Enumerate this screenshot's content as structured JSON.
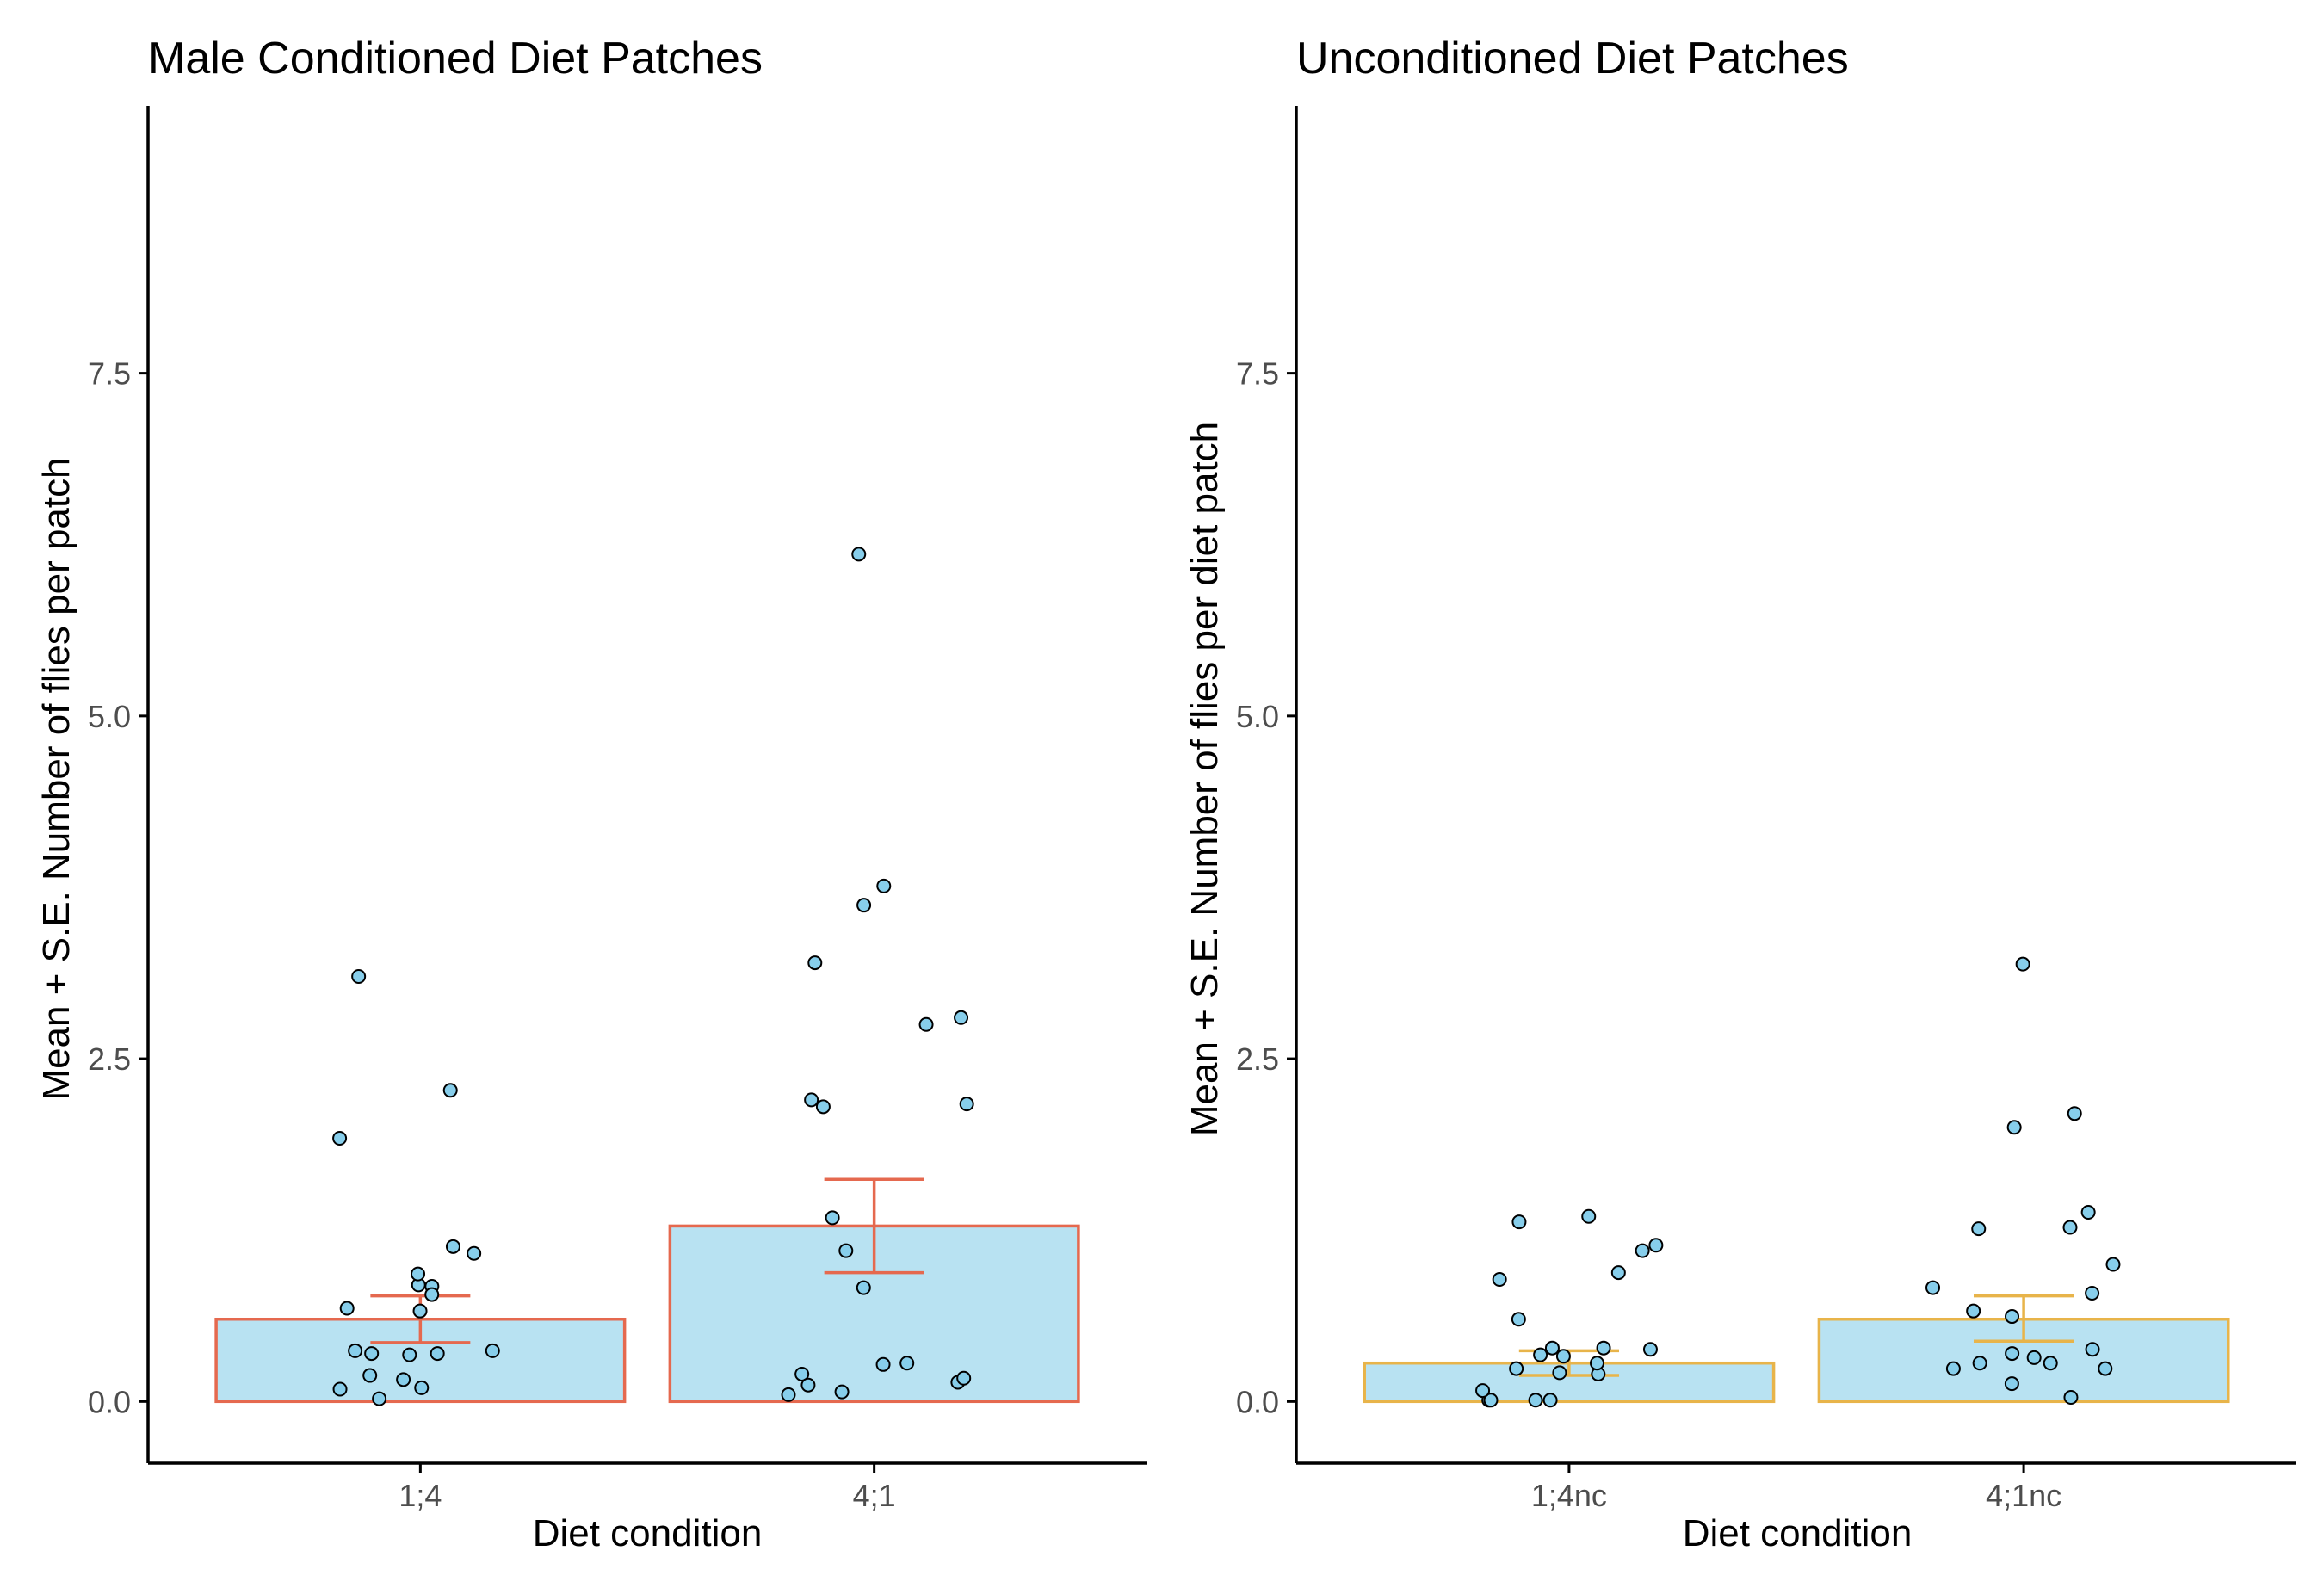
{
  "chart_data": [
    {
      "type": "bar",
      "title": "Male Conditioned Diet Patches",
      "xlabel": "Diet condition",
      "ylabel": "Mean + S.E. Number of flies per patch",
      "ylim": [
        -0.45,
        9.45
      ],
      "yticks": [
        "0.0",
        "2.5",
        "5.0",
        "7.5"
      ],
      "grid": false,
      "categories": [
        "1;4",
        "4;1"
      ],
      "values": [
        0.6,
        1.28
      ],
      "error_low": [
        0.43,
        0.94
      ],
      "error_high": [
        0.77,
        1.62
      ],
      "colors": {
        "bar_fill": "#b8e2f2",
        "bar_outline": "#e5694f",
        "error_bar": "#e5694f",
        "point_fill": "#87ceeb",
        "point_edge": "#000000"
      },
      "points": [
        {
          "category": 0,
          "values": [
            0.85,
            0.84,
            0.68,
            0.35,
            0.34,
            0.1,
            0.09,
            0.37,
            0.35,
            0.16,
            0.02,
            1.08,
            2.27,
            1.92,
            0.66,
            0.19,
            1.13,
            0.37,
            0.78,
            0.93,
            3.1
          ]
        },
        {
          "category": 1,
          "values": [
            0.05,
            0.14,
            0.17,
            0.2,
            0.83,
            2.8,
            3.2,
            6.18,
            3.76,
            0.28,
            1.34,
            2.2,
            2.17,
            3.62,
            2.15,
            0.27,
            0.07,
            0.12,
            2.75,
            1.1
          ]
        }
      ]
    },
    {
      "type": "bar",
      "title": "Unconditioned Diet Patches",
      "xlabel": "Diet condition",
      "ylabel": "Mean + S.E. Number of flies per diet patch",
      "ylim": [
        -0.45,
        9.45
      ],
      "yticks": [
        "0.0",
        "2.5",
        "5.0",
        "7.5"
      ],
      "grid": false,
      "categories": [
        "1;4nc",
        "4;1nc"
      ],
      "values": [
        0.28,
        0.6
      ],
      "error_low": [
        0.19,
        0.44
      ],
      "error_high": [
        0.37,
        0.77
      ],
      "colors": {
        "bar_fill": "#b8e2f2",
        "bar_outline": "#e8b44a",
        "error_bar": "#e8b44a",
        "point_fill": "#87ceeb",
        "point_edge": "#000000"
      },
      "points": [
        {
          "category": 0,
          "values": [
            0.34,
            0.01,
            0.38,
            1.31,
            1.1,
            0.33,
            0.6,
            1.35,
            0.01,
            0.94,
            0.2,
            0.89,
            0.24,
            0.21,
            0.01,
            0.08,
            0.39,
            0.39,
            0.28,
            1.14,
            0.01
          ]
        },
        {
          "category": 1,
          "values": [
            0.13,
            3.19,
            0.62,
            1.38,
            2.0,
            0.35,
            1.26,
            0.66,
            1.27,
            0.24,
            0.28,
            2.1,
            0.79,
            1.0,
            0.24,
            0.38,
            0.03,
            0.28,
            0.32,
            0.83
          ]
        }
      ]
    }
  ]
}
